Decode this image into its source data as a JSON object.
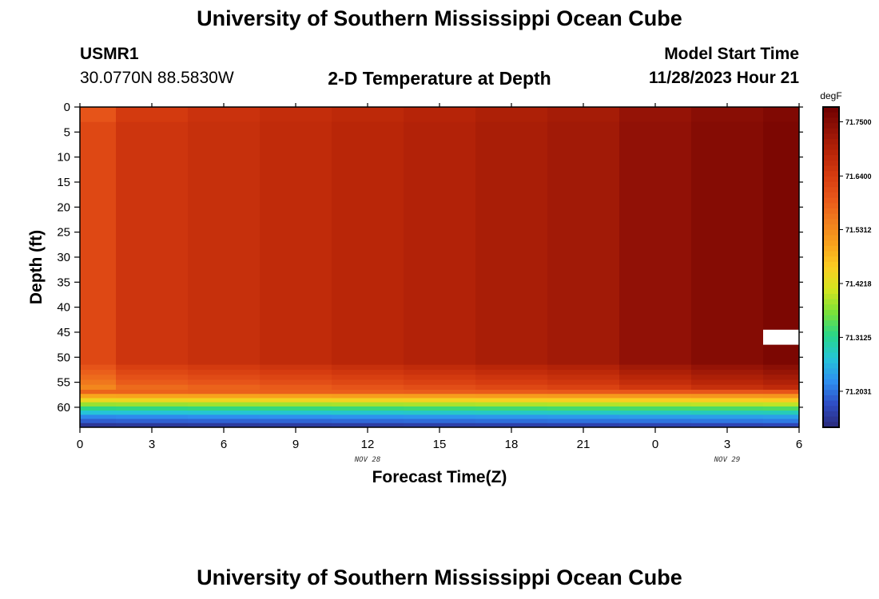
{
  "page": {
    "title": "University of Southern Mississippi Ocean Cube",
    "footer_title": "University of Southern Mississippi Ocean Cube",
    "station_id": "USMR1",
    "coords": "30.0770N  88.5830W",
    "plot_title": "2-D Temperature at Depth",
    "model_label": "Model Start Time",
    "model_time": "11/28/2023 Hour 21"
  },
  "chart_data": {
    "type": "heatmap",
    "title": "2-D Temperature at Depth",
    "xlabel": "Forecast Time(Z)",
    "ylabel": "Depth (ft)",
    "x_ticks": [
      "0",
      "3",
      "6",
      "9",
      "12",
      "15",
      "18",
      "21",
      "0",
      "3",
      "6"
    ],
    "x_date_labels": [
      {
        "label": "NOV 28",
        "at_tick": 4
      },
      {
        "label": "NOV 29",
        "at_tick": 9
      }
    ],
    "x_range_hours": [
      0,
      30
    ],
    "y_ticks": [
      0,
      5,
      10,
      15,
      20,
      25,
      30,
      35,
      40,
      45,
      50,
      55,
      60
    ],
    "y_range_ft": [
      0,
      64
    ],
    "y_inverted": true,
    "colorbar": {
      "unit": "degF",
      "range": [
        71.13,
        71.78
      ],
      "tick_labels": [
        "71.7500",
        "71.6400",
        "71.5312",
        "71.4218",
        "71.3125",
        "71.2031"
      ],
      "tick_values": [
        71.75,
        71.64,
        71.5312,
        71.4218,
        71.3125,
        71.2031
      ]
    },
    "colormap": [
      "#2a2a7a",
      "#2f4cc4",
      "#2e8ff0",
      "#25c4d8",
      "#28d68a",
      "#78e03a",
      "#d4e620",
      "#fbcd22",
      "#f8a21c",
      "#f17d1e",
      "#e8571a",
      "#d63c10",
      "#b82508",
      "#921206",
      "#6e0000"
    ],
    "time_columns_hours": [
      0,
      1.5,
      4.5,
      7.5,
      10.5,
      13.5,
      16.5,
      19.5,
      22.5,
      25.5,
      28.5,
      30
    ],
    "upper_layer_temps": [
      71.62,
      71.655,
      71.665,
      71.675,
      71.685,
      71.695,
      71.705,
      71.715,
      71.735,
      71.75,
      71.762,
      71.775
    ],
    "upper_layer_surface_temps": [
      71.6,
      71.645,
      71.66,
      71.67,
      71.68,
      71.69,
      71.7,
      71.71,
      71.73,
      71.745,
      71.757,
      71.77
    ],
    "layers_depth_ft": [
      {
        "top": 51.5,
        "bottom": 52.5,
        "offset": -0.02
      },
      {
        "top": 52.5,
        "bottom": 53.5,
        "offset": -0.035
      },
      {
        "top": 53.5,
        "bottom": 54.5,
        "offset": -0.05
      },
      {
        "top": 54.5,
        "bottom": 55.5,
        "offset": -0.065
      },
      {
        "top": 55.5,
        "bottom": 56.5,
        "offset": -0.085
      }
    ],
    "bottom_gradient_depth_ft": [
      56.5,
      64
    ],
    "bottom_gradient_temps": [
      71.6,
      71.52,
      71.46,
      71.4,
      71.34,
      71.29,
      71.24,
      71.21,
      71.17
    ],
    "missing_cell": {
      "hour_from": 28.5,
      "hour_to": 30,
      "depth_from": 44.5,
      "depth_to": 47.5
    }
  }
}
